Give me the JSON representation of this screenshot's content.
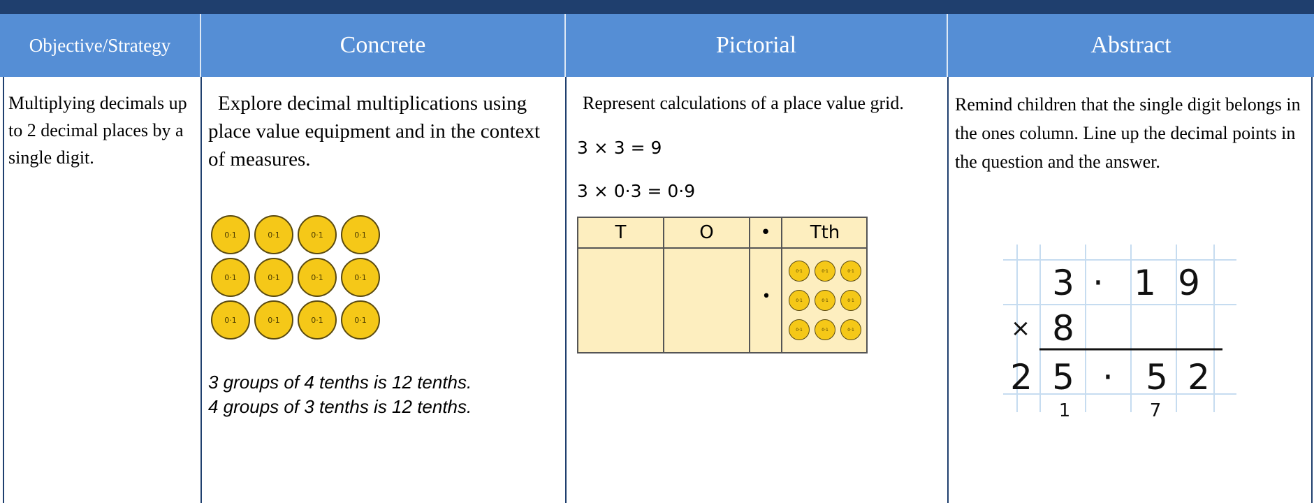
{
  "table": {
    "headers": [
      "Objective/Strategy",
      "Concrete",
      "Pictorial",
      "Abstract"
    ],
    "objective": "Multiplying decimals up to 2 decimal places by a single digit.",
    "concrete": {
      "text": "Explore decimal multiplications using place value equipment and in the context of measures.",
      "counters": [
        [
          "0·1",
          "0·1",
          "0·1",
          "0·1"
        ],
        [
          "0·1",
          "0·1",
          "0·1",
          "0·1"
        ],
        [
          "0·1",
          "0·1",
          "0·1",
          "0·1"
        ]
      ],
      "sentences": [
        "3 groups of 4 tenths is 12 tenths.",
        "4 groups of 3 tenths is 12 tenths."
      ]
    },
    "pictorial": {
      "text": "Represent calculations of a place value grid.",
      "equations": [
        "3 × 3 = 9",
        "3 × 0·3 = 0·9"
      ],
      "grid_headers": [
        "T",
        "O",
        "•",
        "Tth"
      ],
      "grid_point": "•",
      "counters": [
        [
          "0·1",
          "0·1",
          "0·1"
        ],
        [
          "0·1",
          "0·1",
          "0·1"
        ],
        [
          "0·1",
          "0·1",
          "0·1"
        ]
      ]
    },
    "abstract": {
      "text": "Remind children that the single digit belongs in the ones column. Line up the decimal points in the question and the answer.",
      "rows": [
        [
          "3",
          "·",
          "1",
          "9"
        ],
        [
          "×",
          "8"
        ],
        [
          "2",
          "5",
          "·",
          "5",
          "2"
        ]
      ],
      "carries": [
        "1",
        "7"
      ]
    }
  }
}
